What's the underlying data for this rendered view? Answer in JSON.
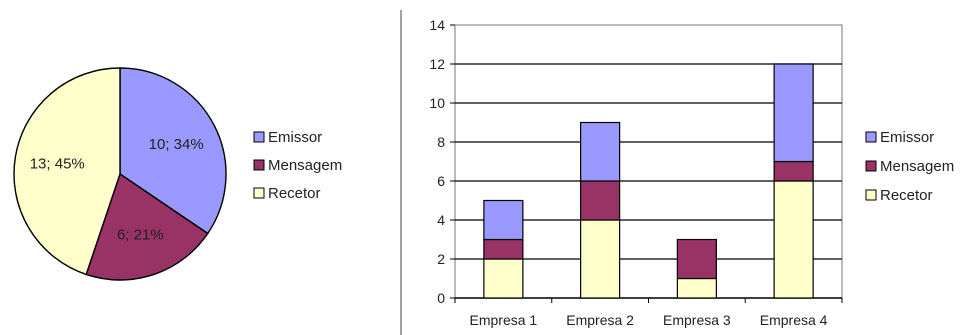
{
  "chart_data": [
    {
      "type": "pie",
      "slices": [
        {
          "name": "Emissor",
          "value": 10,
          "label": "10; 34%",
          "color": "#9999ff"
        },
        {
          "name": "Mensagem",
          "value": 6,
          "label": "6; 21%",
          "color": "#993366"
        },
        {
          "name": "Recetor",
          "value": 13,
          "label": "13; 45%",
          "color": "#ffffcc"
        }
      ],
      "legend": [
        "Emissor",
        "Mensagem",
        "Recetor"
      ],
      "legend_placement": "right"
    },
    {
      "type": "bar",
      "stacked": true,
      "categories": [
        "Empresa 1",
        "Empresa 2",
        "Empresa 3",
        "Empresa 4"
      ],
      "series": [
        {
          "name": "Recetor",
          "values": [
            2,
            4,
            1,
            6
          ],
          "color": "#ffffcc"
        },
        {
          "name": "Mensagem",
          "values": [
            1,
            2,
            2,
            1
          ],
          "color": "#993366"
        },
        {
          "name": "Emissor",
          "values": [
            2,
            3,
            0,
            5
          ],
          "color": "#9999ff"
        }
      ],
      "legend": [
        "Emissor",
        "Mensagem",
        "Recetor"
      ],
      "legend_placement": "right",
      "ylim": [
        0,
        14
      ],
      "yticks": [
        "0",
        "2",
        "4",
        "6",
        "8",
        "10",
        "12",
        "14"
      ],
      "grid": true
    }
  ]
}
